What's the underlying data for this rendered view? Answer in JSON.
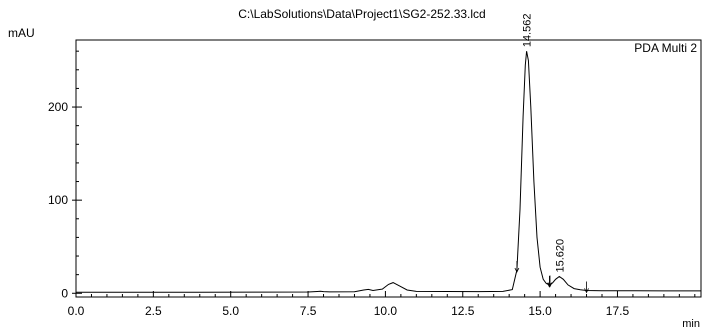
{
  "chart_data": {
    "type": "line",
    "title": "C:\\LabSolutions\\Data\\Project1\\SG2-252.33.lcd",
    "xlabel": "min",
    "ylabel": "mAU",
    "xlim": [
      0,
      20.2
    ],
    "ylim": [
      -4,
      272
    ],
    "x_ticks": [
      0.0,
      2.5,
      5.0,
      7.5,
      10.0,
      12.5,
      15.0,
      17.5
    ],
    "x_tick_labels": [
      "0.0",
      "2.5",
      "5.0",
      "7.5",
      "10.0",
      "12.5",
      "15.0",
      "17.5"
    ],
    "y_ticks": [
      0,
      100,
      200
    ],
    "y_tick_labels": [
      "0",
      "100",
      "200"
    ],
    "series": [
      {
        "name": "PDA Multi 2",
        "color": "#000000",
        "x": [
          0.0,
          2.0,
          4.0,
          6.0,
          7.5,
          7.8,
          7.9,
          8.0,
          8.2,
          9.0,
          9.3,
          9.45,
          9.6,
          9.9,
          10.1,
          10.25,
          10.45,
          10.7,
          11.0,
          12.0,
          13.0,
          13.8,
          14.1,
          14.25,
          14.35,
          14.45,
          14.52,
          14.562,
          14.62,
          14.7,
          14.8,
          14.9,
          15.0,
          15.1,
          15.2,
          15.3,
          15.4,
          15.5,
          15.62,
          15.75,
          15.9,
          16.1,
          16.3,
          16.5,
          17.0,
          18.0,
          19.0,
          20.2
        ],
        "y": [
          1.0,
          1.1,
          1.2,
          1.3,
          1.4,
          1.9,
          2.1,
          1.8,
          1.5,
          1.7,
          3.5,
          4.2,
          3.0,
          4.5,
          9.5,
          11.5,
          8.0,
          3.5,
          2.0,
          1.9,
          1.8,
          2.0,
          4.0,
          25.0,
          90.0,
          190.0,
          245.0,
          260.0,
          250.0,
          200.0,
          120.0,
          60.0,
          28.0,
          15.0,
          10.5,
          9.0,
          11.0,
          15.0,
          18.0,
          15.0,
          9.0,
          5.0,
          3.7,
          3.0,
          2.8,
          2.7,
          2.6,
          2.6
        ]
      }
    ],
    "peak_labels": [
      {
        "x": 14.562,
        "y": 260.0,
        "text": "14.562"
      },
      {
        "x": 15.62,
        "y": 18.0,
        "text": "15.620"
      }
    ],
    "integration_markers": [
      14.25,
      15.3,
      15.32,
      16.5
    ],
    "legend_placement": "top-right",
    "grid": false
  }
}
